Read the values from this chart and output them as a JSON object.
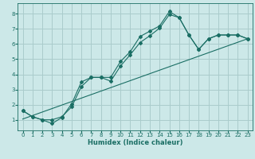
{
  "xlabel": "Humidex (Indice chaleur)",
  "bg_color": "#cce8e8",
  "grid_color": "#aacccc",
  "line_color": "#1a6e64",
  "xlim": [
    -0.5,
    23.5
  ],
  "ylim": [
    0.3,
    8.7
  ],
  "xticks": [
    0,
    1,
    2,
    3,
    4,
    5,
    6,
    7,
    8,
    9,
    10,
    11,
    12,
    13,
    14,
    15,
    16,
    17,
    18,
    19,
    20,
    21,
    22,
    23
  ],
  "yticks": [
    1,
    2,
    3,
    4,
    5,
    6,
    7,
    8
  ],
  "line1_x": [
    0,
    1,
    2,
    3,
    4,
    5,
    6,
    7,
    8,
    9,
    10,
    11,
    12,
    13,
    14,
    15,
    16,
    17,
    18,
    19,
    20,
    21,
    22,
    23
  ],
  "line1_y": [
    1.6,
    1.2,
    1.0,
    0.75,
    1.15,
    2.05,
    3.5,
    3.8,
    3.8,
    3.8,
    4.85,
    5.5,
    6.5,
    6.85,
    7.2,
    8.15,
    7.75,
    6.6,
    5.65,
    6.35,
    6.6,
    6.6,
    6.6,
    6.35
  ],
  "line2_x": [
    0,
    1,
    2,
    3,
    4,
    5,
    6,
    7,
    8,
    9,
    10,
    11,
    12,
    13,
    14,
    15,
    16,
    17,
    18,
    19,
    20,
    21,
    22,
    23
  ],
  "line2_y": [
    1.6,
    1.2,
    1.0,
    1.0,
    1.2,
    1.85,
    3.2,
    3.8,
    3.8,
    3.55,
    4.55,
    5.3,
    6.1,
    6.55,
    7.05,
    7.95,
    7.75,
    6.6,
    5.65,
    6.35,
    6.6,
    6.6,
    6.6,
    6.35
  ],
  "line3_x": [
    0,
    23
  ],
  "line3_y": [
    1.05,
    6.35
  ],
  "tick_fontsize": 5.0,
  "xlabel_fontsize": 6.0
}
